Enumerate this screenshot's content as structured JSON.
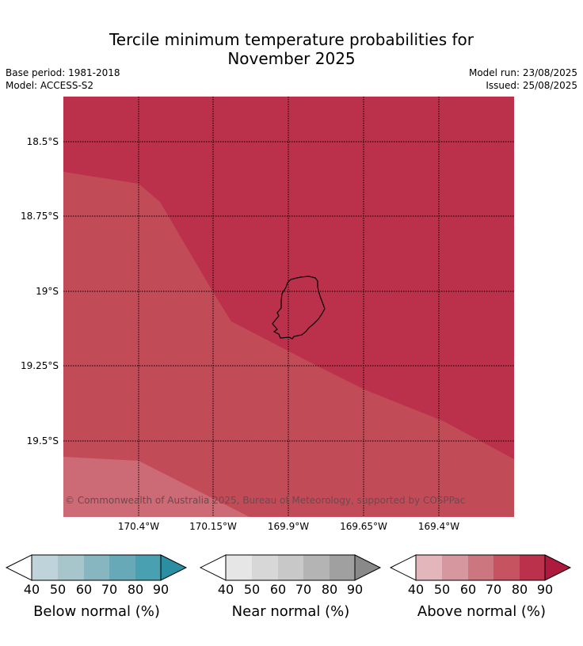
{
  "title_line1": "Tercile minimum temperature probabilities for",
  "title_line2": "November 2025",
  "base_period": "Base period: 1981-2018",
  "model": "Model: ACCESS-S2",
  "model_run": "Model run: 23/08/2025",
  "issued": "Issued: 25/08/2025",
  "copyright": "© Commonwealth of Australia 2025, Bureau of Meteorology, supported by COSPPac",
  "lat_labels": [
    "18.5°S",
    "18.75°S",
    "19°S",
    "19.25°S",
    "19.5°S"
  ],
  "lon_labels": [
    "170.4°W",
    "170.15°W",
    "169.9°W",
    "169.65°W",
    "169.4°W"
  ],
  "colors": {
    "above_80_90": "#bb304b",
    "above_70_80": "#c24b58",
    "above_60_70": "#cc6a75",
    "coastline": "#000000"
  },
  "colorbars": [
    {
      "label": "Below normal (%)",
      "ticks": [
        "40",
        "50",
        "60",
        "70",
        "80",
        "90"
      ],
      "colors": [
        "#bfd3da",
        "#a6c6cc",
        "#87b5c0",
        "#68a9b8",
        "#48a0b0",
        "#2b8ea3"
      ]
    },
    {
      "label": "Near normal (%)",
      "ticks": [
        "40",
        "50",
        "60",
        "70",
        "80",
        "90"
      ],
      "colors": [
        "#e6e6e6",
        "#d7d7d7",
        "#c8c8c8",
        "#b4b4b4",
        "#a0a0a0",
        "#898989"
      ]
    },
    {
      "label": "Above normal (%)",
      "ticks": [
        "40",
        "50",
        "60",
        "70",
        "80",
        "90"
      ],
      "colors": [
        "#e2b6bb",
        "#d6979f",
        "#cc7780",
        "#c55360",
        "#bb304b",
        "#ad1a3e"
      ]
    }
  ]
}
